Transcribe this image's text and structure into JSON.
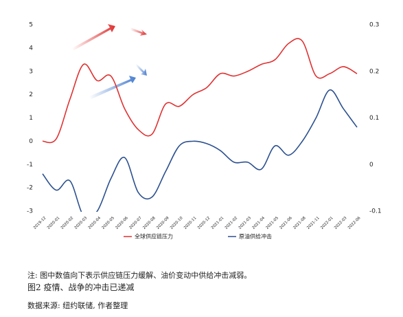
{
  "chart_data": {
    "type": "line",
    "categories": [
      "2019-12",
      "2020-01",
      "2020-02",
      "2020-03",
      "2020-04",
      "2020-05",
      "2020-06",
      "2020-07",
      "2020-08",
      "2020-09",
      "2020-10",
      "2020-11",
      "2020-12",
      "2021-01",
      "2021-02",
      "2021-03",
      "2021-04",
      "2021-05",
      "2021-06",
      "2021-08",
      "2021-11",
      "2022-01",
      "2022-03",
      "2022-06"
    ],
    "series": [
      {
        "name": "全球供应链压力",
        "color": "#e03030",
        "values": [
          0,
          0.1,
          1.8,
          3.3,
          2.6,
          2.8,
          1.4,
          0.5,
          0.3,
          1.6,
          1.5,
          2.0,
          2.3,
          2.9,
          2.8,
          3.0,
          3.3,
          3.5,
          4.2,
          4.3,
          2.8,
          2.9,
          3.2,
          2.9
        ]
      },
      {
        "name": "原油供给冲击",
        "color": "#2a4f8f",
        "axis": "y2",
        "values": [
          -0.02,
          -0.055,
          -0.035,
          -0.11,
          -0.1,
          -0.03,
          0.015,
          -0.06,
          -0.07,
          -0.015,
          0.04,
          0.05,
          0.045,
          0.03,
          0.005,
          0.005,
          -0.01,
          0.04,
          0.02,
          0.05,
          0.1,
          0.16,
          0.12,
          0.08
        ]
      }
    ],
    "ylim": [
      -3,
      5
    ],
    "yticks": [
      -3,
      -2,
      -1,
      0,
      1,
      2,
      3,
      4,
      5
    ],
    "y2lim": [
      -0.1,
      0.3
    ],
    "y2ticks": [
      -0.1,
      0,
      0.1,
      0.2,
      0.3
    ],
    "notes": [
      "注: 图中数值向下表示供应链压力缓解、油价变动中供给冲击减弱。",
      "图2 疫情、战争的冲击已递减",
      "数据来源: 纽约联储, 作者整理"
    ]
  }
}
